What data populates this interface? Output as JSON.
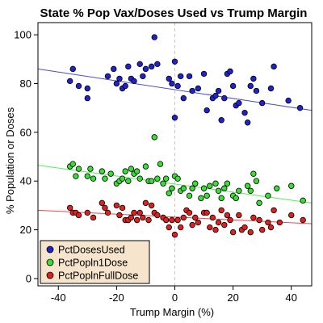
{
  "chart_data": {
    "type": "scatter",
    "title": "State % Pop Vax/Doses Used vs Trump Margin",
    "xlabel": "Trump Margin (%)",
    "ylabel": "% Population or Doses",
    "xlim": [
      -47,
      47
    ],
    "ylim": [
      -3,
      105
    ],
    "xticks": [
      -40,
      -20,
      0,
      20,
      40
    ],
    "yticks": [
      0,
      20,
      40,
      60,
      80,
      100
    ],
    "grid": false,
    "zero_line": {
      "x": 0,
      "style": "dashed",
      "color": "#c8c8c8"
    },
    "legend_position": "bottom-left",
    "legend_background": "#f6e4cc",
    "series": [
      {
        "name": "PctDosesUsed",
        "color": "#1e22d0",
        "fit_color": "#4b4bd6",
        "fit": [
          [
            -47,
            86.0
          ],
          [
            47,
            69.0
          ]
        ],
        "points": [
          [
            -36,
            81
          ],
          [
            -35,
            86
          ],
          [
            -33,
            79
          ],
          [
            -30,
            74
          ],
          [
            -30,
            78
          ],
          [
            -23,
            83
          ],
          [
            -21,
            86
          ],
          [
            -20,
            80
          ],
          [
            -19,
            82
          ],
          [
            -18,
            78
          ],
          [
            -17,
            79
          ],
          [
            -16,
            87
          ],
          [
            -15,
            82
          ],
          [
            -14,
            81
          ],
          [
            -12,
            88
          ],
          [
            -11,
            83
          ],
          [
            -10,
            86
          ],
          [
            -8,
            87
          ],
          [
            -7,
            99
          ],
          [
            -6,
            88
          ],
          [
            -2,
            82
          ],
          [
            -1,
            80
          ],
          [
            0,
            89
          ],
          [
            0,
            66
          ],
          [
            1,
            79
          ],
          [
            2,
            83
          ],
          [
            3,
            74
          ],
          [
            5,
            83
          ],
          [
            6,
            77
          ],
          [
            8,
            78
          ],
          [
            10,
            84
          ],
          [
            11,
            69
          ],
          [
            13,
            74
          ],
          [
            14,
            75
          ],
          [
            15,
            77
          ],
          [
            16,
            65
          ],
          [
            17,
            74
          ],
          [
            18,
            84
          ],
          [
            19,
            85
          ],
          [
            20,
            79
          ],
          [
            21,
            71
          ],
          [
            22,
            72
          ],
          [
            24,
            68
          ],
          [
            25,
            64
          ],
          [
            26,
            79
          ],
          [
            27,
            82
          ],
          [
            28,
            77
          ],
          [
            30,
            72
          ],
          [
            33,
            78
          ],
          [
            34,
            87
          ],
          [
            39,
            73
          ],
          [
            43,
            70
          ]
        ]
      },
      {
        "name": "PctPopln1Dose",
        "color": "#37e032",
        "fit_color": "#55ee55",
        "fit": [
          [
            -47,
            46.5
          ],
          [
            47,
            31.0
          ]
        ],
        "points": [
          [
            -36,
            46
          ],
          [
            -35,
            47
          ],
          [
            -34,
            42
          ],
          [
            -33,
            45
          ],
          [
            -30,
            42
          ],
          [
            -29,
            45
          ],
          [
            -28,
            41
          ],
          [
            -25,
            44
          ],
          [
            -24,
            41
          ],
          [
            -22,
            43
          ],
          [
            -20,
            39
          ],
          [
            -19,
            40
          ],
          [
            -18,
            41
          ],
          [
            -17,
            44
          ],
          [
            -16,
            40
          ],
          [
            -15,
            45
          ],
          [
            -14,
            43
          ],
          [
            -13,
            44
          ],
          [
            -12,
            41
          ],
          [
            -10,
            46
          ],
          [
            -9,
            40
          ],
          [
            -8,
            40
          ],
          [
            -7,
            58
          ],
          [
            -6,
            41
          ],
          [
            -5,
            47
          ],
          [
            -4,
            39
          ],
          [
            -3,
            41
          ],
          [
            -2,
            35
          ],
          [
            -1,
            37
          ],
          [
            0,
            42
          ],
          [
            1,
            41
          ],
          [
            2,
            36
          ],
          [
            3,
            37
          ],
          [
            5,
            34
          ],
          [
            6,
            37
          ],
          [
            7,
            39
          ],
          [
            9,
            33
          ],
          [
            10,
            37
          ],
          [
            11,
            34
          ],
          [
            12,
            38
          ],
          [
            14,
            39
          ],
          [
            15,
            36
          ],
          [
            16,
            33
          ],
          [
            17,
            37
          ],
          [
            18,
            39
          ],
          [
            20,
            34
          ],
          [
            21,
            33
          ],
          [
            22,
            36
          ],
          [
            25,
            38
          ],
          [
            26,
            36
          ],
          [
            27,
            43
          ],
          [
            28,
            40
          ],
          [
            29,
            31
          ],
          [
            32,
            34
          ],
          [
            35,
            37
          ],
          [
            40,
            38
          ],
          [
            44,
            32
          ]
        ]
      },
      {
        "name": "PctPoplnFullDose",
        "color": "#e02020",
        "fit_color": "#f04848",
        "fit": [
          [
            -47,
            28.0
          ],
          [
            47,
            22.5
          ]
        ],
        "points": [
          [
            -36,
            29
          ],
          [
            -35,
            27
          ],
          [
            -34,
            27
          ],
          [
            -33,
            26
          ],
          [
            -30,
            27
          ],
          [
            -28,
            25
          ],
          [
            -25,
            31
          ],
          [
            -24,
            29
          ],
          [
            -23,
            27
          ],
          [
            -20,
            30
          ],
          [
            -19,
            26
          ],
          [
            -18,
            29
          ],
          [
            -17,
            24
          ],
          [
            -16,
            24
          ],
          [
            -15,
            25
          ],
          [
            -14,
            27
          ],
          [
            -13,
            24
          ],
          [
            -12,
            27
          ],
          [
            -11,
            25
          ],
          [
            -10,
            31
          ],
          [
            -9,
            24
          ],
          [
            -8,
            30
          ],
          [
            -7,
            27
          ],
          [
            -6,
            26
          ],
          [
            -4,
            25
          ],
          [
            -3,
            24
          ],
          [
            -2,
            21
          ],
          [
            -1,
            24
          ],
          [
            0,
            18
          ],
          [
            1,
            24
          ],
          [
            2,
            21
          ],
          [
            3,
            25
          ],
          [
            4,
            28
          ],
          [
            5,
            27
          ],
          [
            6,
            22
          ],
          [
            7,
            25
          ],
          [
            8,
            23
          ],
          [
            10,
            27
          ],
          [
            11,
            27
          ],
          [
            12,
            21
          ],
          [
            13,
            25
          ],
          [
            14,
            20
          ],
          [
            15,
            23
          ],
          [
            16,
            28
          ],
          [
            17,
            22
          ],
          [
            18,
            26
          ],
          [
            19,
            24
          ],
          [
            20,
            19
          ],
          [
            22,
            26
          ],
          [
            23,
            20
          ],
          [
            24,
            21
          ],
          [
            26,
            19
          ],
          [
            27,
            25
          ],
          [
            29,
            24
          ],
          [
            30,
            20
          ],
          [
            32,
            23
          ],
          [
            33,
            21
          ],
          [
            34,
            28
          ],
          [
            36,
            23
          ],
          [
            40,
            26
          ],
          [
            44,
            24
          ]
        ]
      }
    ]
  }
}
